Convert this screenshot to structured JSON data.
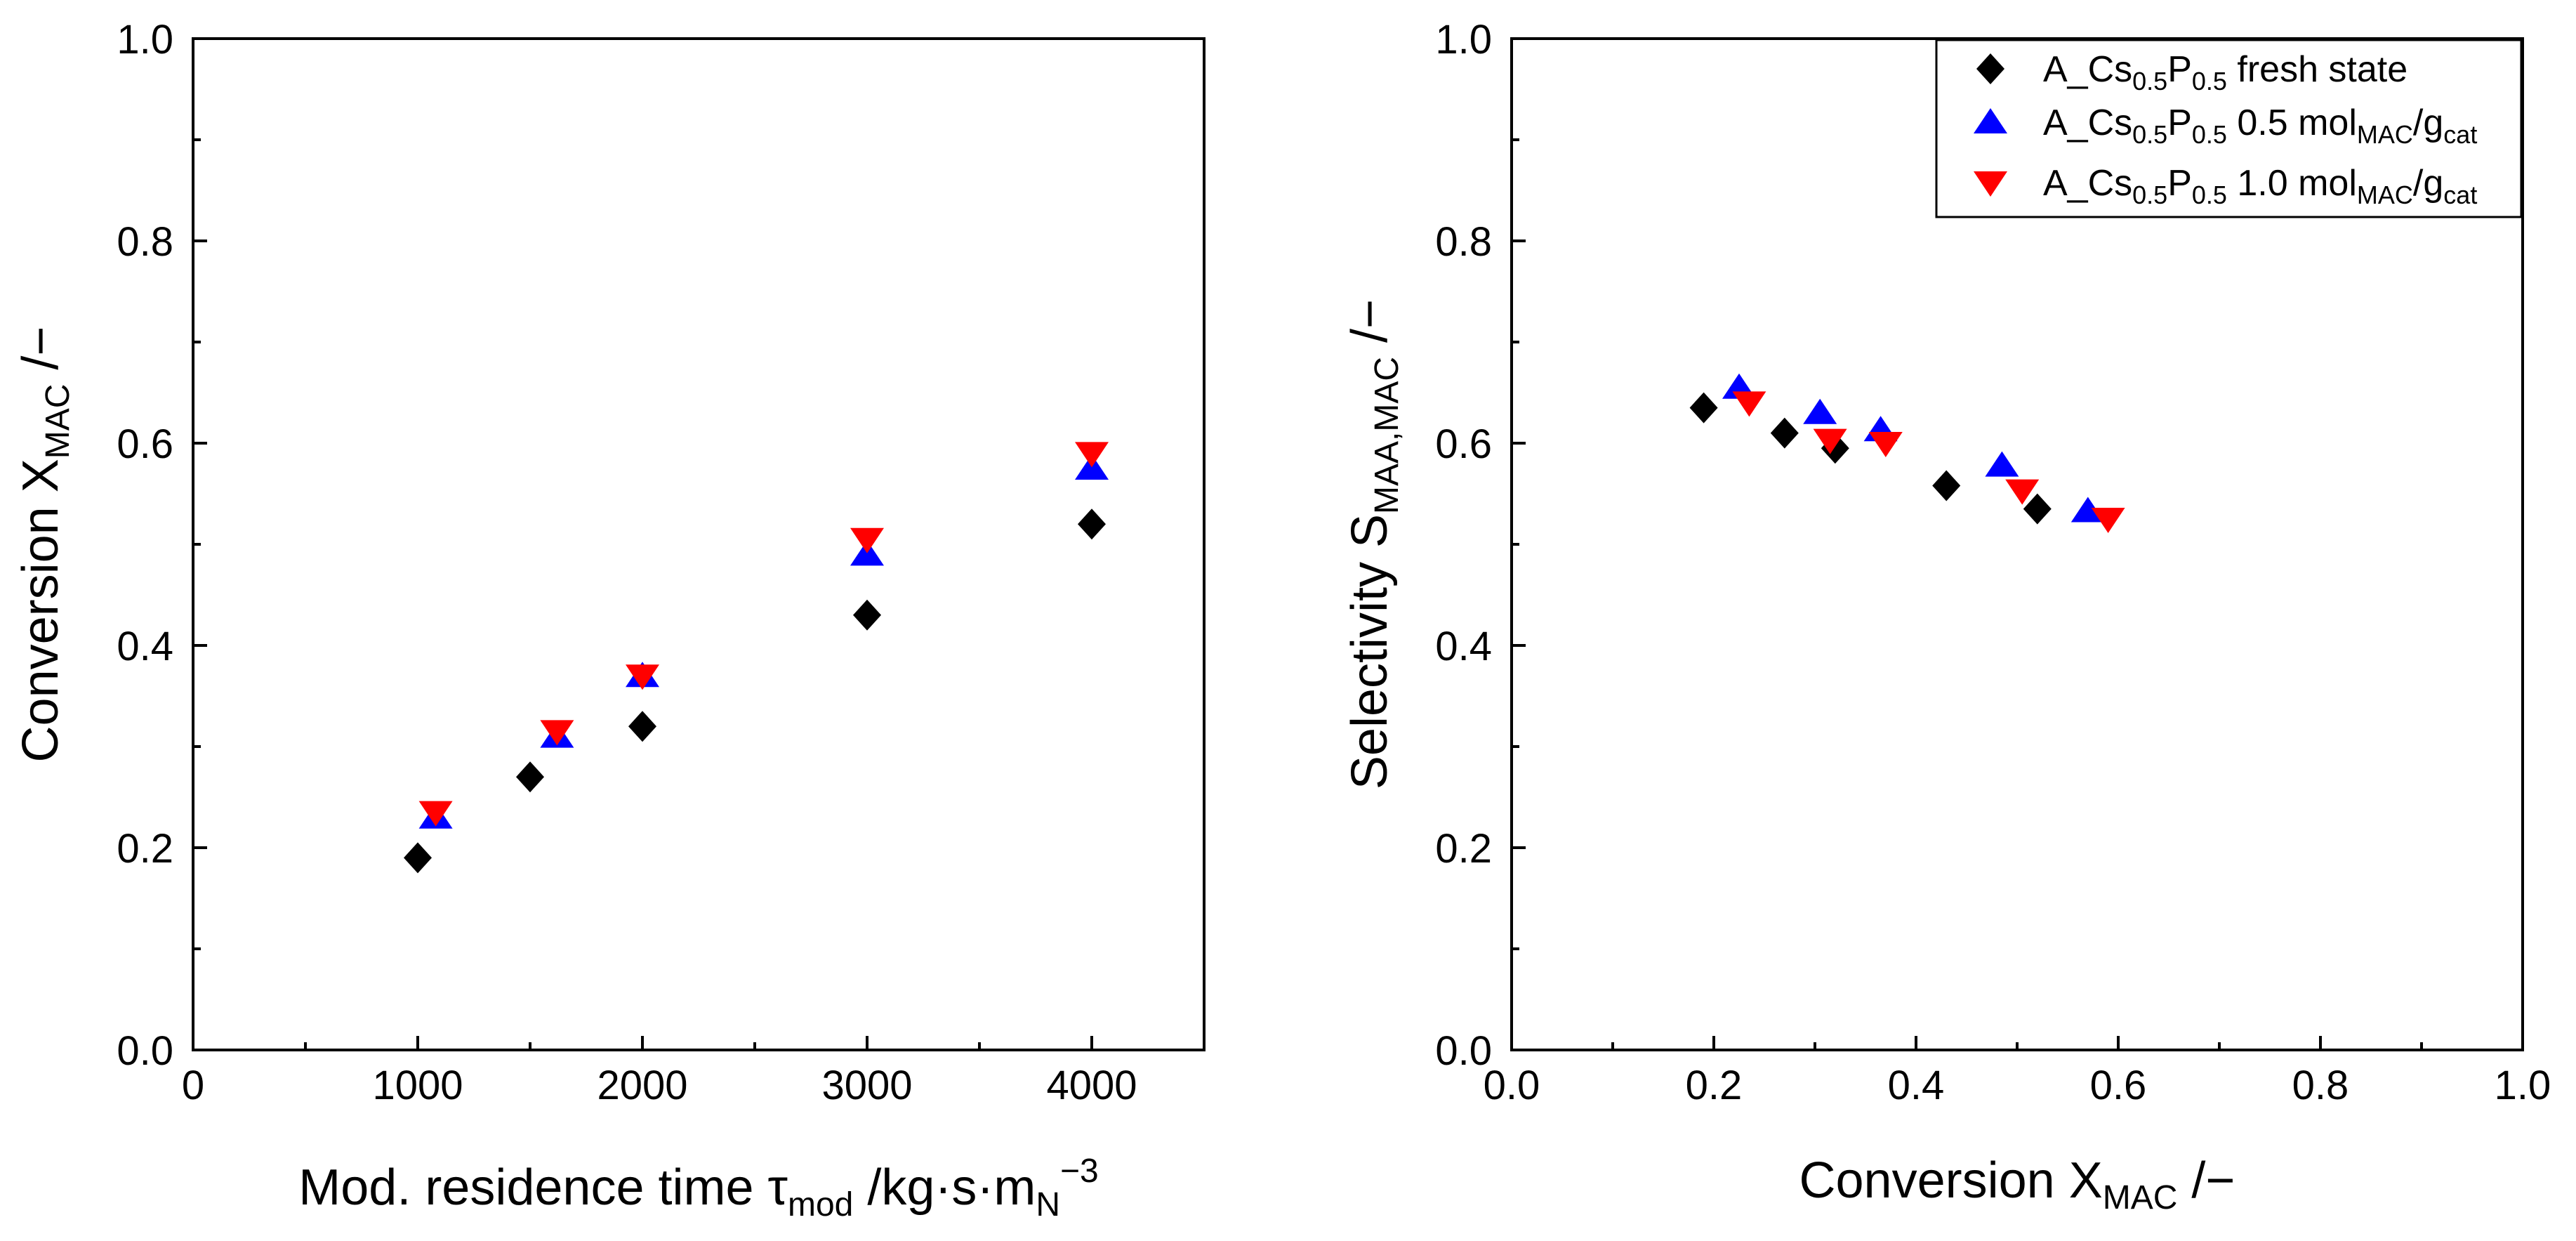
{
  "colors": {
    "black": "#000000",
    "blue": "#0000ff",
    "red": "#ff0000"
  },
  "chart_data": [
    {
      "type": "scatter",
      "panel": "left",
      "xlabel": "Mod. residence time τmod /kg·s·mN−3",
      "xlabel_parts": {
        "pre": "Mod. residence time τ",
        "sub1": "mod",
        "mid": " /kg·s·m",
        "sub2": "N",
        "sup": "−3"
      },
      "ylabel": "Conversion XMAC /−",
      "ylabel_parts": {
        "pre": "Conversion X",
        "sub": "MAC",
        "post": " /−"
      },
      "xlim": [
        0,
        4500
      ],
      "ylim": [
        0.0,
        1.0
      ],
      "xticks": [
        0,
        1000,
        2000,
        3000,
        4000
      ],
      "xtick_labels": [
        "0",
        "1000",
        "2000",
        "3000",
        "4000"
      ],
      "yticks": [
        0.0,
        0.2,
        0.4,
        0.6,
        0.8,
        1.0
      ],
      "ytick_labels": [
        "0.0",
        "0.2",
        "0.4",
        "0.6",
        "0.8",
        "1.0"
      ],
      "series": [
        {
          "name": "A_Cs0.5P0.5 fresh state",
          "marker": "diamond",
          "color": "#000000",
          "x": [
            1000,
            1500,
            2000,
            3000,
            4000
          ],
          "y": [
            0.19,
            0.27,
            0.32,
            0.43,
            0.52
          ]
        },
        {
          "name": "A_Cs0.5P0.5 0.5 molMAC/gcat",
          "marker": "triangle-up",
          "color": "#0000ff",
          "x": [
            1080,
            1620,
            2000,
            3000,
            4000
          ],
          "y": [
            0.23,
            0.31,
            0.37,
            0.49,
            0.575
          ]
        },
        {
          "name": "A_Cs0.5P0.5 1.0 molMAC/gcat",
          "marker": "triangle-down",
          "color": "#ff0000",
          "x": [
            1080,
            1620,
            2000,
            3000,
            4000
          ],
          "y": [
            0.235,
            0.315,
            0.37,
            0.505,
            0.59
          ]
        }
      ]
    },
    {
      "type": "scatter",
      "panel": "right",
      "xlabel": "Conversion XMAC /−",
      "xlabel_parts": {
        "pre": "Conversion X",
        "sub": "MAC",
        "post": " /−"
      },
      "ylabel": "Selectivity SMAA,MAC /−",
      "ylabel_parts": {
        "pre": "Selectivity S",
        "sub": "MAA,MAC",
        "post": " /−"
      },
      "xlim": [
        0.0,
        1.0
      ],
      "ylim": [
        0.0,
        1.0
      ],
      "xticks": [
        0.0,
        0.2,
        0.4,
        0.6,
        0.8,
        1.0
      ],
      "xtick_labels": [
        "0.0",
        "0.2",
        "0.4",
        "0.6",
        "0.8",
        "1.0"
      ],
      "yticks": [
        0.0,
        0.2,
        0.4,
        0.6,
        0.8,
        1.0
      ],
      "ytick_labels": [
        "0.0",
        "0.2",
        "0.4",
        "0.6",
        "0.8",
        "1.0"
      ],
      "legend_position": "top-right",
      "legend": [
        {
          "pre": "A_Cs",
          "s1": "0.5",
          "mid": "P",
          "s2": "0.5",
          "post": " fresh state",
          "unit": "",
          "usub1": "",
          "uslash": "",
          "usub2": ""
        },
        {
          "pre": "A_Cs",
          "s1": "0.5",
          "mid": "P",
          "s2": "0.5",
          "post": " 0.5 mol",
          "unit": "",
          "usub1": "MAC",
          "uslash": "/g",
          "usub2": "cat"
        },
        {
          "pre": "A_Cs",
          "s1": "0.5",
          "mid": "P",
          "s2": "0.5",
          "post": " 1.0 mol",
          "unit": "",
          "usub1": "MAC",
          "uslash": "/g",
          "usub2": "cat"
        }
      ],
      "series": [
        {
          "name": "A_Cs0.5P0.5 fresh state",
          "marker": "diamond",
          "color": "#000000",
          "x": [
            0.19,
            0.27,
            0.32,
            0.43,
            0.52
          ],
          "y": [
            0.635,
            0.61,
            0.595,
            0.558,
            0.535
          ]
        },
        {
          "name": "A_Cs0.5P0.5 0.5 molMAC/gcat",
          "marker": "triangle-up",
          "color": "#0000ff",
          "x": [
            0.225,
            0.305,
            0.365,
            0.485,
            0.57
          ],
          "y": [
            0.655,
            0.63,
            0.613,
            0.578,
            0.533
          ]
        },
        {
          "name": "A_Cs0.5P0.5 1.0 molMAC/gcat",
          "marker": "triangle-down",
          "color": "#ff0000",
          "x": [
            0.235,
            0.315,
            0.37,
            0.505,
            0.59
          ],
          "y": [
            0.64,
            0.603,
            0.6,
            0.553,
            0.525
          ]
        }
      ]
    }
  ]
}
